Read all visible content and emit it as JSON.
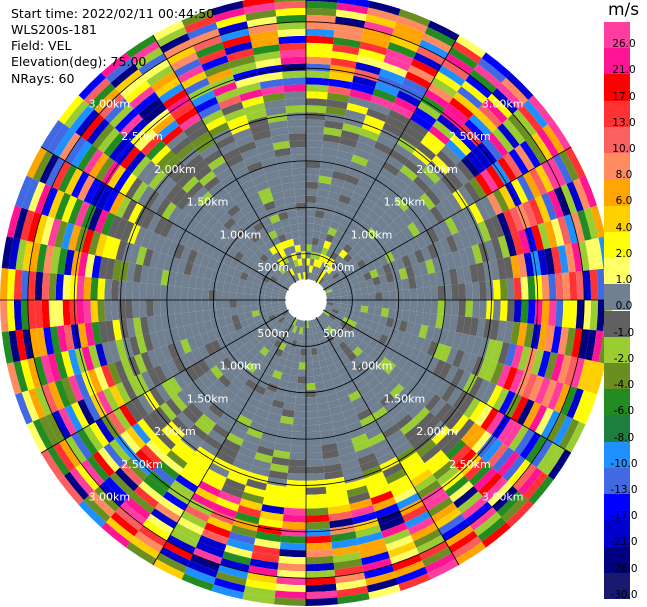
{
  "info": {
    "start_time": "Start time: 2022/02/11 00:44:50",
    "instrument": "WLS200s-181",
    "field": "Field: VEL",
    "elevation": "Elevation(deg): 75.00",
    "nrays": "NRays: 60"
  },
  "colorbar": {
    "unit": "m/s",
    "ticks": [
      "26.0",
      "21.0",
      "17.0",
      "13.0",
      "10.0",
      "8.0",
      "6.0",
      "4.0",
      "2.0",
      "1.0",
      "0.0",
      "-1.0",
      "-2.0",
      "-4.0",
      "-6.0",
      "-8.0",
      "-10.0",
      "-13.0",
      "-17.0",
      "-21.0",
      "-26.0",
      "-30.0"
    ],
    "colors": [
      "#ff3ca0",
      "#ff1493",
      "#ff0000",
      "#ff3333",
      "#fa6060",
      "#ff8c60",
      "#ffa500",
      "#ffd000",
      "#ffff00",
      "#ffff66",
      "#708090",
      "#606060",
      "#9acd32",
      "#6b8e23",
      "#228b22",
      "#1e7e3e",
      "#1e90ff",
      "#4169e1",
      "#0000ff",
      "#0000cd",
      "#000080",
      "#191970"
    ]
  },
  "chart_data": {
    "type": "ppi",
    "field": "VEL",
    "unit": "m/s",
    "nrays": 60,
    "elevation_deg": 75.0,
    "range_rings": [
      "500m",
      "1.00km",
      "1.50km",
      "2.00km",
      "2.50km",
      "3.00km"
    ],
    "range_rings_m": [
      500,
      1000,
      1500,
      2000,
      2500,
      3000
    ],
    "max_range_m": 3300,
    "gate_spacing_m": 75
  }
}
